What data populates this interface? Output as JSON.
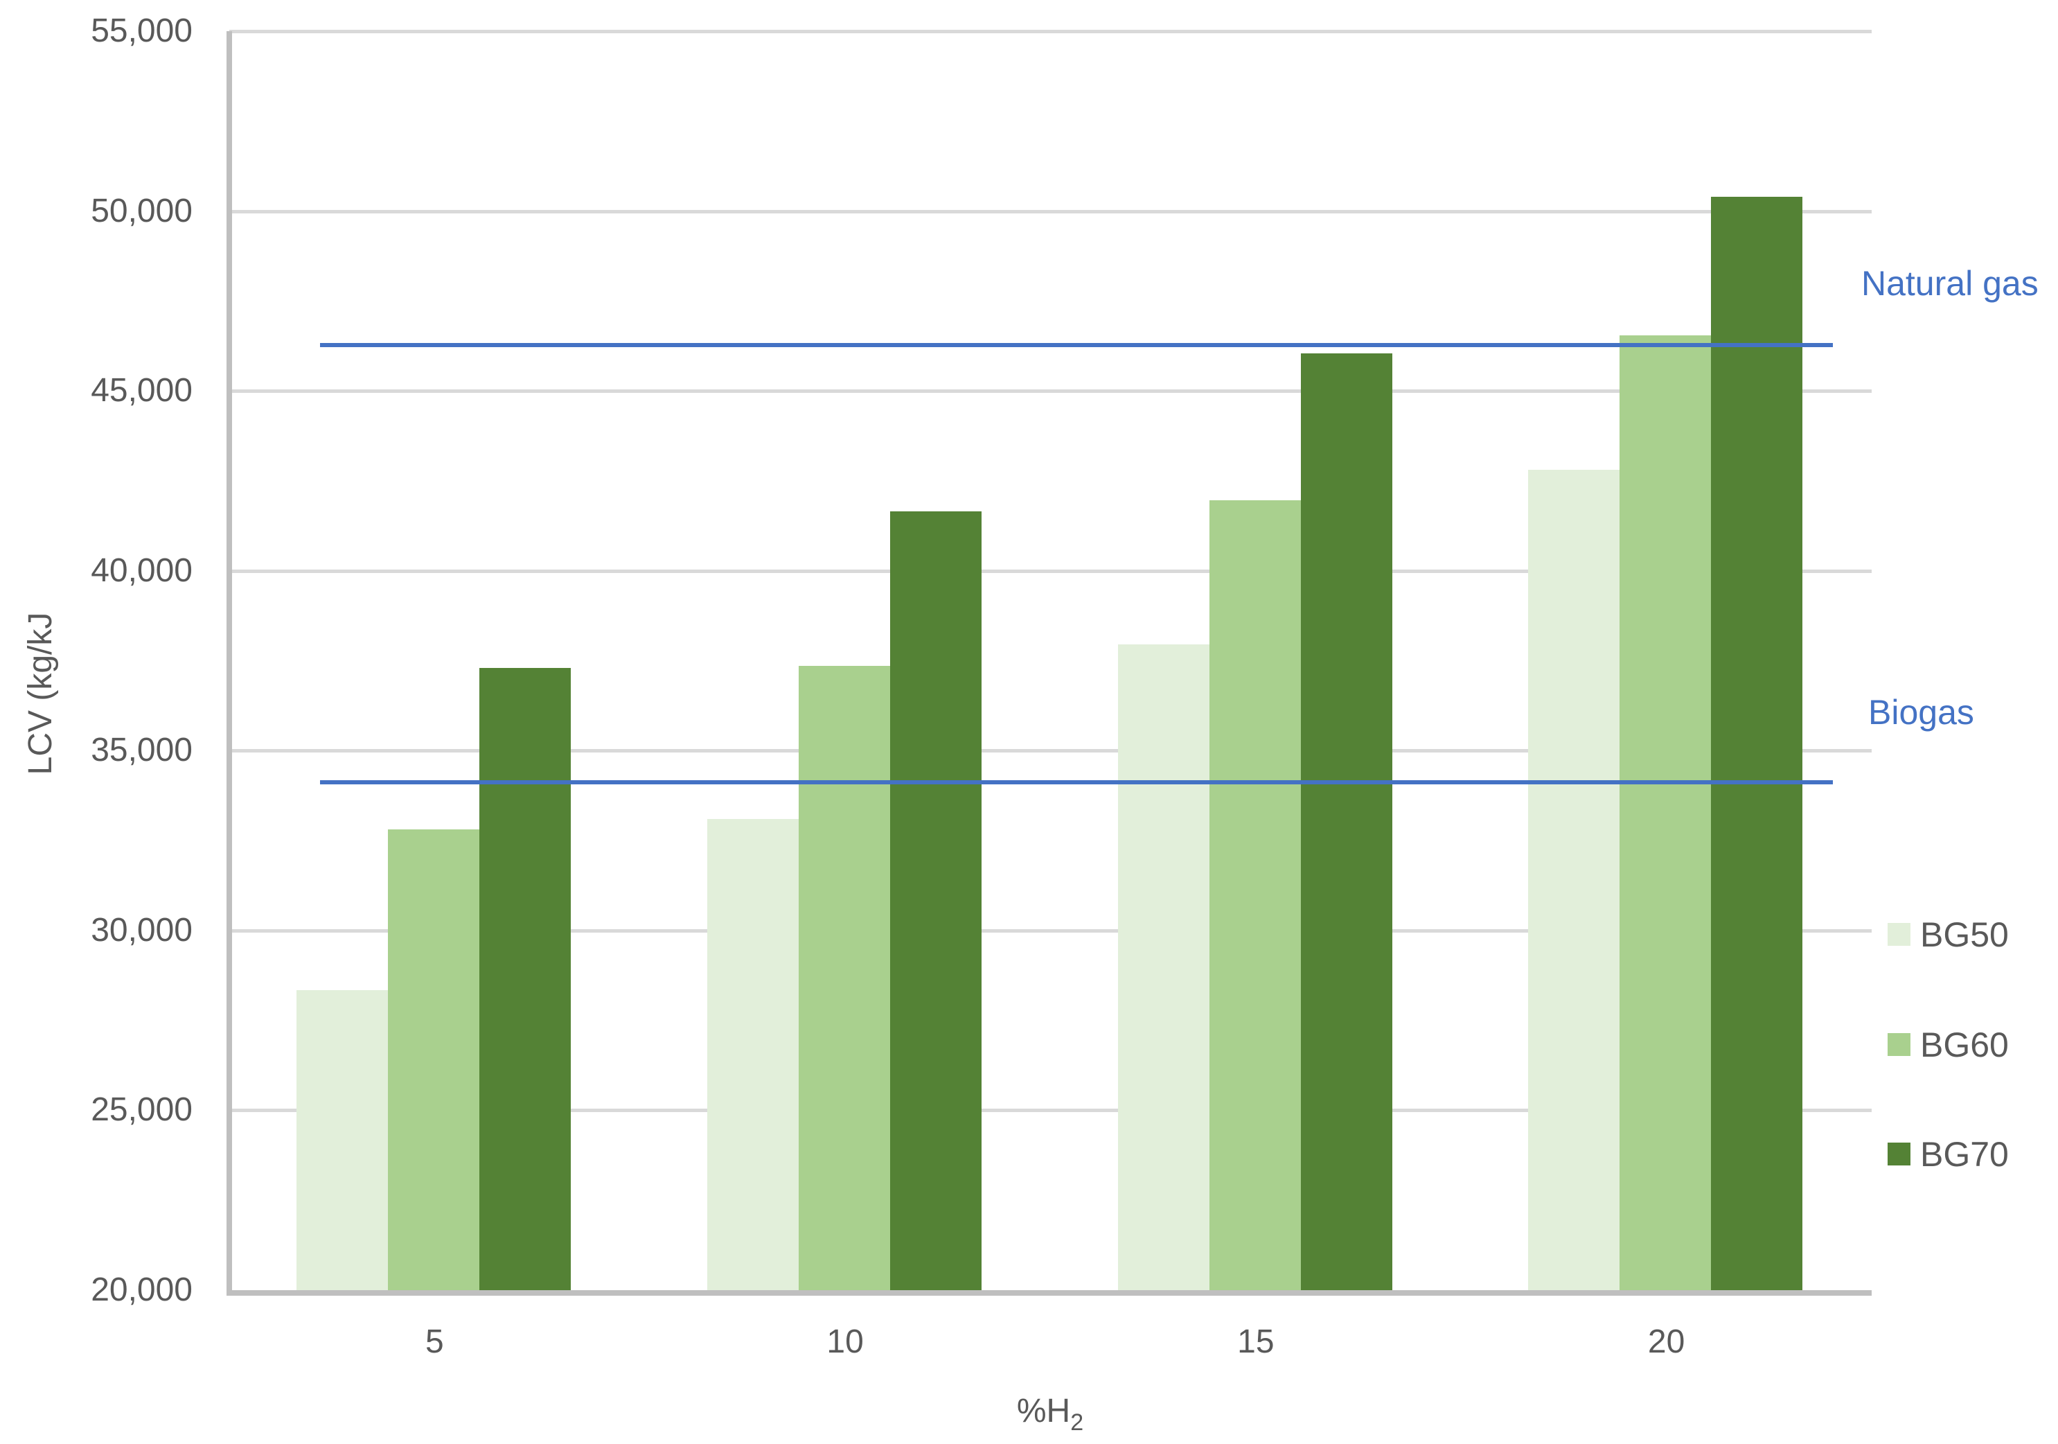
{
  "chart_data": {
    "type": "bar",
    "title": "",
    "xlabel": "%H₂",
    "xlabel_main": "%H",
    "xlabel_sub": "2",
    "ylabel": "LCV (kg/kJ",
    "categories": [
      "5",
      "10",
      "15",
      "20"
    ],
    "series": [
      {
        "name": "BG50",
        "color": "#E2EFDA",
        "values": [
          28350,
          33100,
          37950,
          42800
        ]
      },
      {
        "name": "BG60",
        "color": "#A9D08E",
        "values": [
          32800,
          37350,
          41950,
          46550
        ]
      },
      {
        "name": "BG70",
        "color": "#548235",
        "values": [
          37300,
          41650,
          46050,
          50400
        ]
      }
    ],
    "reference_lines": [
      {
        "label": "Natural gas",
        "value": 46280,
        "color": "#4472C4"
      },
      {
        "label": "Biogas",
        "value": 34120,
        "color": "#4472C4"
      }
    ],
    "ylim": [
      20000,
      55000
    ],
    "ytick_step": 5000,
    "ytick_labels": [
      "20,000",
      "25,000",
      "30,000",
      "35,000",
      "40,000",
      "45,000",
      "50,000",
      "55,000"
    ],
    "grid": true,
    "legend_position": "right",
    "colors": {
      "axis_text": "#595959",
      "grid_line": "#D9D9D9",
      "axis_line": "#BFBFBF",
      "reference_label": "#4472C4"
    }
  }
}
